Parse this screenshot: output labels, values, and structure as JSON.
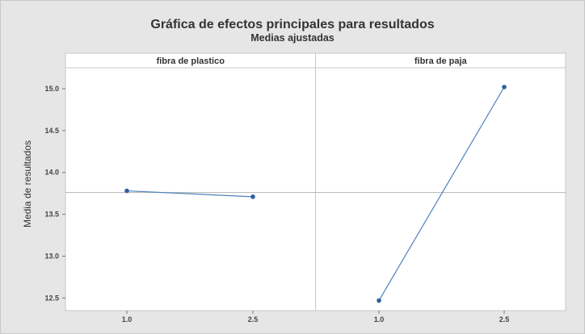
{
  "chart_data": {
    "type": "line",
    "title": "Gráfica de efectos principales para resultados",
    "subtitle": "Medias ajustadas",
    "ylabel": "Media de resultados",
    "xlabel": "",
    "ylim": [
      12.35,
      15.25
    ],
    "yticks": [
      12.5,
      13.0,
      13.5,
      14.0,
      14.5,
      15.0
    ],
    "ytick_labels": [
      "12.5",
      "13.0",
      "13.5",
      "14.0",
      "14.5",
      "15.0"
    ],
    "overall_mean": 13.76,
    "panels": [
      {
        "factor": "fibra de plastico",
        "x": [
          "1.0",
          "2.5"
        ],
        "values": [
          13.78,
          13.71
        ]
      },
      {
        "factor": "fibra de paja",
        "x": [
          "1.0",
          "2.5"
        ],
        "values": [
          12.47,
          15.02
        ]
      }
    ],
    "grid": false,
    "colors": {
      "line": "#4f81bd",
      "marker": "#2f5f9e",
      "reference": "#b4b4b4",
      "panel_bg": "#ffffff",
      "outer_bg": "#e6e6e6"
    }
  }
}
